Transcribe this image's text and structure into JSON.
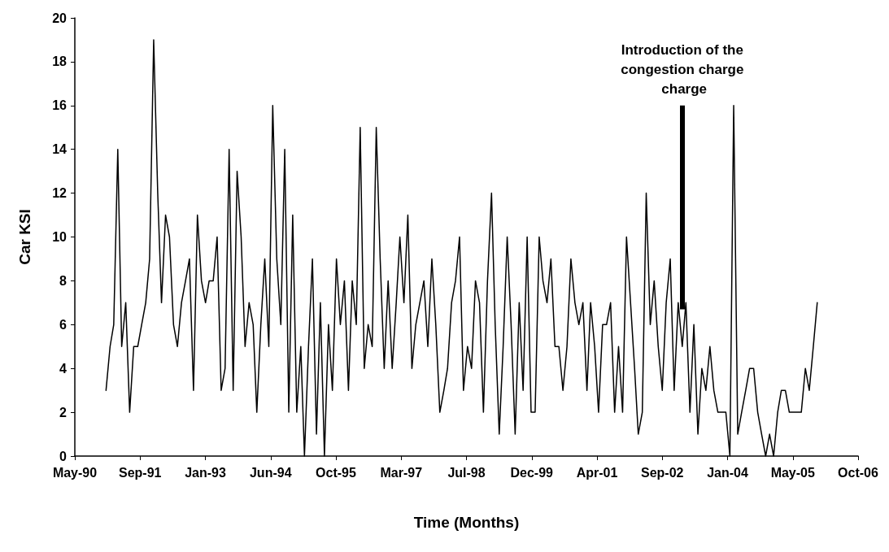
{
  "chart_data": {
    "type": "line",
    "xlabel": "Time (Months)",
    "ylabel": "Car KSI",
    "color": "#000000",
    "marker": "none",
    "line_style": "solid",
    "x": [
      "1991-01",
      "1991-02",
      "1991-03",
      "1991-04",
      "1991-05",
      "1991-06",
      "1991-07",
      "1991-08",
      "1991-09",
      "1991-10",
      "1991-11",
      "1991-12",
      "1992-01",
      "1992-02",
      "1992-03",
      "1992-04",
      "1992-05",
      "1992-06",
      "1992-07",
      "1992-08",
      "1992-09",
      "1992-10",
      "1992-11",
      "1992-12",
      "1993-01",
      "1993-02",
      "1993-03",
      "1993-04",
      "1993-05",
      "1993-06",
      "1993-07",
      "1993-08",
      "1993-09",
      "1993-10",
      "1993-11",
      "1993-12",
      "1994-01",
      "1994-02",
      "1994-03",
      "1994-04",
      "1994-05",
      "1994-06",
      "1994-07",
      "1994-08",
      "1994-09",
      "1994-10",
      "1994-11",
      "1994-12",
      "1995-01",
      "1995-02",
      "1995-03",
      "1995-04",
      "1995-05",
      "1995-06",
      "1995-07",
      "1995-08",
      "1995-09",
      "1995-10",
      "1995-11",
      "1995-12",
      "1996-01",
      "1996-02",
      "1996-03",
      "1996-04",
      "1996-05",
      "1996-06",
      "1996-07",
      "1996-08",
      "1996-09",
      "1996-10",
      "1996-11",
      "1996-12",
      "1997-01",
      "1997-02",
      "1997-03",
      "1997-04",
      "1997-05",
      "1997-06",
      "1997-07",
      "1997-08",
      "1997-09",
      "1997-10",
      "1997-11",
      "1997-12",
      "1998-01",
      "1998-02",
      "1998-03",
      "1998-04",
      "1998-05",
      "1998-06",
      "1998-07",
      "1998-08",
      "1998-09",
      "1998-10",
      "1998-11",
      "1998-12",
      "1999-01",
      "1999-02",
      "1999-03",
      "1999-04",
      "1999-05",
      "1999-06",
      "1999-07",
      "1999-08",
      "1999-09",
      "1999-10",
      "1999-11",
      "1999-12",
      "2000-01",
      "2000-02",
      "2000-03",
      "2000-04",
      "2000-05",
      "2000-06",
      "2000-07",
      "2000-08",
      "2000-09",
      "2000-10",
      "2000-11",
      "2000-12",
      "2001-01",
      "2001-02",
      "2001-03",
      "2001-04",
      "2001-05",
      "2001-06",
      "2001-07",
      "2001-08",
      "2001-09",
      "2001-10",
      "2001-11",
      "2001-12",
      "2002-01",
      "2002-02",
      "2002-03",
      "2002-04",
      "2002-05",
      "2002-06",
      "2002-07",
      "2002-08",
      "2002-09",
      "2002-10",
      "2002-11",
      "2002-12",
      "2003-01",
      "2003-02",
      "2003-03",
      "2003-04",
      "2003-05",
      "2003-06",
      "2003-07",
      "2003-08",
      "2003-09",
      "2003-10",
      "2003-11",
      "2003-12",
      "2004-01",
      "2004-02",
      "2004-03",
      "2004-04",
      "2004-05",
      "2004-06",
      "2004-07",
      "2004-08",
      "2004-09",
      "2004-10",
      "2004-11",
      "2004-12",
      "2005-01",
      "2005-02",
      "2005-03",
      "2005-04",
      "2005-05",
      "2005-06",
      "2005-07",
      "2005-08",
      "2005-09",
      "2005-10",
      "2005-11",
      "2005-12"
    ],
    "values": [
      3,
      5,
      6,
      14,
      5,
      7,
      2,
      5,
      5,
      6,
      7,
      9,
      19,
      12,
      7,
      11,
      10,
      6,
      5,
      7,
      8,
      9,
      3,
      11,
      8,
      7,
      8,
      8,
      10,
      3,
      4,
      14,
      3,
      13,
      10,
      5,
      7,
      6,
      2,
      6,
      9,
      5,
      16,
      9,
      6,
      14,
      2,
      11,
      2,
      5,
      0,
      5,
      9,
      1,
      7,
      0,
      6,
      3,
      9,
      6,
      8,
      3,
      8,
      6,
      15,
      4,
      6,
      5,
      15,
      9,
      4,
      8,
      4,
      7,
      10,
      7,
      11,
      4,
      6,
      7,
      8,
      5,
      9,
      6,
      2,
      3,
      4,
      7,
      8,
      10,
      3,
      5,
      4,
      8,
      7,
      2,
      8,
      12,
      6,
      1,
      5,
      10,
      6,
      1,
      7,
      3,
      10,
      2,
      2,
      10,
      8,
      7,
      9,
      5,
      5,
      3,
      5,
      9,
      7,
      6,
      7,
      3,
      7,
      5,
      2,
      6,
      6,
      7,
      2,
      5,
      2,
      10,
      7,
      4,
      1,
      2,
      12,
      6,
      8,
      5,
      3,
      7,
      9,
      3,
      7,
      5,
      7,
      2,
      6,
      1,
      4,
      3,
      5,
      3,
      2,
      2,
      2,
      0,
      16,
      1,
      2,
      3,
      4,
      4,
      2,
      1,
      0,
      1,
      0,
      2,
      3,
      3,
      2,
      2,
      2,
      2,
      4,
      3,
      5,
      7
    ],
    "xlim": [
      "1990-05-07",
      "2006-10-10"
    ],
    "xticks": [
      {
        "value": "1990-05-07",
        "label": "May-90"
      },
      {
        "value": "1991-09-19",
        "label": "Sep-91"
      },
      {
        "value": "1993-01-31",
        "label": "Jan-93"
      },
      {
        "value": "1994-06-15",
        "label": "Jun-94"
      },
      {
        "value": "1995-10-28",
        "label": "Oct-95"
      },
      {
        "value": "1997-03-11",
        "label": "Mar-97"
      },
      {
        "value": "1998-07-24",
        "label": "Jul-98"
      },
      {
        "value": "1999-12-06",
        "label": "Dec-99"
      },
      {
        "value": "2001-04-19",
        "label": "Apr-01"
      },
      {
        "value": "2002-09-01",
        "label": "Sep-02"
      },
      {
        "value": "2004-01-14",
        "label": "Jan-04"
      },
      {
        "value": "2005-05-28",
        "label": "May-05"
      },
      {
        "value": "2006-10-10",
        "label": "Oct-06"
      }
    ],
    "ylim": [
      0,
      20
    ],
    "yticks": [
      0,
      2,
      4,
      6,
      8,
      10,
      12,
      14,
      16,
      18,
      20
    ],
    "annotations": [
      {
        "text": "Introduction of the\ncongestion charge\n charge",
        "x": "2003-02",
        "y": 6.7
      }
    ]
  }
}
